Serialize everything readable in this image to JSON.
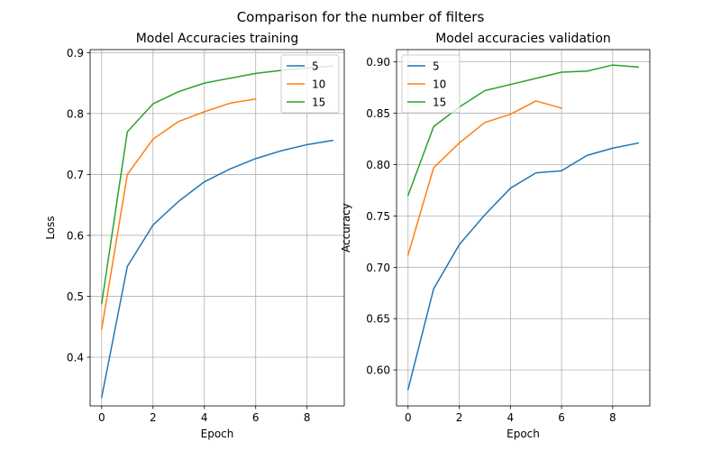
{
  "figure": {
    "suptitle": "Comparison for the number of filters"
  },
  "chart_data": [
    {
      "type": "line",
      "title": "Model Accuracies training",
      "xlabel": "Epoch",
      "ylabel": "Loss",
      "xlim": [
        -0.45,
        9.45
      ],
      "ylim": [
        0.32,
        0.905
      ],
      "xticks": [
        0,
        2,
        4,
        6,
        8
      ],
      "yticks": [
        0.4,
        0.5,
        0.6,
        0.7,
        0.8,
        0.9
      ],
      "ytick_labels": [
        "0.4",
        "0.5",
        "0.6",
        "0.7",
        "0.8",
        "0.9"
      ],
      "xtick_labels": [
        "0",
        "2",
        "4",
        "6",
        "8"
      ],
      "grid": true,
      "legend_position": "top-right",
      "series": [
        {
          "name": "5",
          "color": "#1f77b4",
          "x": [
            0,
            1,
            2,
            3,
            4,
            5,
            6,
            7,
            8,
            9
          ],
          "values": [
            0.334,
            0.549,
            0.617,
            0.656,
            0.688,
            0.709,
            0.726,
            0.739,
            0.749,
            0.756
          ]
        },
        {
          "name": "10",
          "color": "#ff7f0e",
          "x": [
            0,
            1,
            2,
            3,
            4,
            5,
            6
          ],
          "values": [
            0.446,
            0.7,
            0.758,
            0.787,
            0.803,
            0.817,
            0.824
          ]
        },
        {
          "name": "15",
          "color": "#2ca02c",
          "x": [
            0,
            1,
            2,
            3,
            4,
            5,
            6,
            7,
            8,
            9
          ],
          "values": [
            0.488,
            0.77,
            0.816,
            0.836,
            0.85,
            0.858,
            0.866,
            0.871,
            0.875,
            0.878
          ]
        }
      ]
    },
    {
      "type": "line",
      "title": "Model accuracies validation",
      "xlabel": "Epoch",
      "ylabel": "Accuracy",
      "xlim": [
        -0.45,
        9.45
      ],
      "ylim": [
        0.565,
        0.912
      ],
      "xticks": [
        0,
        2,
        4,
        6,
        8
      ],
      "yticks": [
        0.6,
        0.65,
        0.7,
        0.75,
        0.8,
        0.85,
        0.9
      ],
      "ytick_labels": [
        "0.60",
        "0.65",
        "0.70",
        "0.75",
        "0.80",
        "0.85",
        "0.90"
      ],
      "xtick_labels": [
        "0",
        "2",
        "4",
        "6",
        "8"
      ],
      "grid": true,
      "legend_position": "top-left",
      "series": [
        {
          "name": "5",
          "color": "#1f77b4",
          "x": [
            0,
            1,
            2,
            3,
            4,
            5,
            6,
            7,
            8,
            9
          ],
          "values": [
            0.581,
            0.679,
            0.722,
            0.751,
            0.777,
            0.792,
            0.794,
            0.809,
            0.816,
            0.821
          ]
        },
        {
          "name": "10",
          "color": "#ff7f0e",
          "x": [
            0,
            1,
            2,
            3,
            4,
            5,
            6
          ],
          "values": [
            0.712,
            0.797,
            0.821,
            0.841,
            0.849,
            0.862,
            0.855
          ]
        },
        {
          "name": "15",
          "color": "#2ca02c",
          "x": [
            0,
            1,
            2,
            3,
            4,
            5,
            6,
            7,
            8,
            9
          ],
          "values": [
            0.77,
            0.837,
            0.856,
            0.872,
            0.878,
            0.884,
            0.89,
            0.891,
            0.897,
            0.895
          ]
        }
      ]
    }
  ]
}
